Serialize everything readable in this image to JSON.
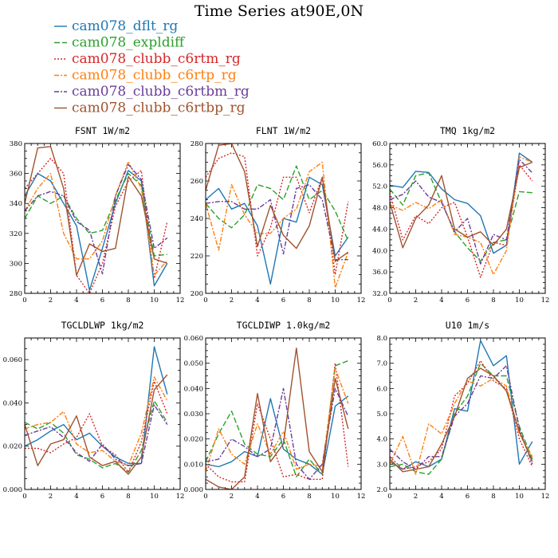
{
  "figure": {
    "title": "Time Series at90E,0N"
  },
  "legend": [
    {
      "label": "cam078_dflt_rg",
      "color": "#1f77b4",
      "dash": ""
    },
    {
      "label": "cam078_expldiff",
      "color": "#2ca02c",
      "dash": "7,3"
    },
    {
      "label": "cam078_clubb_c6rtm_rg",
      "color": "#d62728",
      "dash": "2,2"
    },
    {
      "label": "cam078_clubb_c6rtp_rg",
      "color": "#ff7f0e",
      "dash": "6,2,2,2"
    },
    {
      "label": "cam078_clubb_c6rtbm_rg",
      "color": "#6a3d9a",
      "dash": "6,2,2,2"
    },
    {
      "label": "cam078_clubb_c6rtbp_rg",
      "color": "#a0522d",
      "dash": ""
    }
  ],
  "chart_data": [
    {
      "type": "line",
      "title": "FSNT   1W/m2",
      "xlim": [
        0,
        12
      ],
      "ylim": [
        280,
        380
      ],
      "xticks": [
        0,
        2,
        4,
        6,
        8,
        10,
        12
      ],
      "yticks": [
        "280",
        "300",
        "320",
        "340",
        "360",
        "380"
      ],
      "ytick_values": [
        280,
        300,
        320,
        340,
        360,
        380
      ],
      "x": [
        0,
        1,
        2,
        3,
        4,
        5,
        6,
        7,
        8,
        9,
        10,
        11
      ],
      "series": [
        {
          "values": [
            345,
            360,
            355,
            340,
            325,
            282,
            310,
            340,
            362,
            355,
            285,
            300
          ]
        },
        {
          "values": [
            330,
            345,
            340,
            345,
            330,
            320,
            322,
            342,
            360,
            352,
            305,
            306
          ]
        },
        {
          "values": [
            350,
            360,
            370,
            360,
            292,
            280,
            300,
            338,
            355,
            362,
            290,
            328
          ]
        },
        {
          "values": [
            335,
            350,
            360,
            320,
            303,
            303,
            315,
            345,
            368,
            350,
            292,
            302
          ]
        },
        {
          "values": [
            335,
            345,
            348,
            345,
            328,
            322,
            293,
            345,
            366,
            356,
            310,
            317
          ]
        },
        {
          "values": [
            340,
            377,
            378,
            350,
            292,
            313,
            308,
            310,
            358,
            345,
            303,
            300
          ]
        }
      ]
    },
    {
      "type": "line",
      "title": "FLNT   1W/m2",
      "xlim": [
        0,
        12
      ],
      "ylim": [
        200,
        280
      ],
      "xticks": [
        0,
        2,
        4,
        6,
        8,
        10,
        12
      ],
      "yticks": [
        "200",
        "220",
        "240",
        "260",
        "280"
      ],
      "ytick_values": [
        200,
        220,
        240,
        260,
        280
      ],
      "x": [
        0,
        1,
        2,
        3,
        4,
        5,
        6,
        7,
        8,
        9,
        10,
        11
      ],
      "series": [
        {
          "values": [
            250,
            256,
            245,
            248,
            236,
            205,
            240,
            238,
            262,
            258,
            220,
            230
          ]
        },
        {
          "values": [
            248,
            240,
            235,
            242,
            258,
            256,
            250,
            268,
            250,
            255,
            244,
            228
          ]
        },
        {
          "values": [
            262,
            272,
            275,
            273,
            220,
            235,
            262,
            262,
            243,
            262,
            210,
            249
          ]
        },
        {
          "values": [
            248,
            223,
            258,
            242,
            232,
            232,
            240,
            245,
            265,
            270,
            203,
            222
          ]
        },
        {
          "values": [
            248,
            249,
            249,
            245,
            245,
            250,
            221,
            256,
            258,
            250,
            218,
            218
          ]
        },
        {
          "values": [
            255,
            279,
            280,
            265,
            225,
            247,
            231,
            224,
            236,
            262,
            217,
            222
          ]
        }
      ]
    },
    {
      "type": "line",
      "title": "TMQ   1kg/m2",
      "xlim": [
        0,
        12
      ],
      "ylim": [
        32,
        60
      ],
      "xticks": [
        0,
        2,
        4,
        6,
        8,
        10,
        12
      ],
      "yticks": [
        "32.0",
        "36.0",
        "40.0",
        "44.0",
        "48.0",
        "52.0",
        "56.0",
        "60.0"
      ],
      "ytick_values": [
        32,
        36,
        40,
        44,
        48,
        52,
        56,
        60
      ],
      "x": [
        0,
        1,
        2,
        3,
        4,
        5,
        6,
        7,
        8,
        9,
        10,
        11
      ],
      "series": [
        {
          "values": [
            52.2,
            51.8,
            54.8,
            54.6,
            51.5,
            49.5,
            48.8,
            46.5,
            39.5,
            41.0,
            58.2,
            56.5
          ]
        },
        {
          "values": [
            51.5,
            48.5,
            54.0,
            54.5,
            49.0,
            43.5,
            40.5,
            38.0,
            41.5,
            42.0,
            51.0,
            50.8
          ]
        },
        {
          "values": [
            50.8,
            42.0,
            46.5,
            45.0,
            48.0,
            49.0,
            42.5,
            35.0,
            41.5,
            41.0,
            56.0,
            53.0
          ]
        },
        {
          "values": [
            48.5,
            47.5,
            49.0,
            47.8,
            49.5,
            43.0,
            42.5,
            41.5,
            35.5,
            40.0,
            57.5,
            56.5
          ]
        },
        {
          "values": [
            49.5,
            50.5,
            53.0,
            50.0,
            49.0,
            43.5,
            46.0,
            37.5,
            43.0,
            42.0,
            57.0,
            54.5
          ]
        },
        {
          "values": [
            49.0,
            40.5,
            46.0,
            48.5,
            54.0,
            44.0,
            42.5,
            43.5,
            41.0,
            44.0,
            55.5,
            56.5
          ]
        }
      ]
    },
    {
      "type": "line",
      "title": "TGCLDLWP   1kg/m2",
      "xlim": [
        0,
        12
      ],
      "ylim": [
        0,
        0.07
      ],
      "xticks": [
        0,
        2,
        4,
        6,
        8,
        10,
        12
      ],
      "yticks": [
        "0.000",
        "0.020",
        "0.040",
        "0.060"
      ],
      "ytick_values": [
        0,
        0.02,
        0.04,
        0.06
      ],
      "x": [
        0,
        1,
        2,
        3,
        4,
        5,
        6,
        7,
        8,
        9,
        10,
        11
      ],
      "series": [
        {
          "values": [
            0.02,
            0.023,
            0.027,
            0.03,
            0.023,
            0.026,
            0.02,
            0.015,
            0.012,
            0.012,
            0.066,
            0.044
          ]
        },
        {
          "values": [
            0.031,
            0.028,
            0.031,
            0.026,
            0.016,
            0.014,
            0.01,
            0.012,
            0.008,
            0.018,
            0.041,
            0.031
          ]
        },
        {
          "values": [
            0.019,
            0.019,
            0.017,
            0.021,
            0.024,
            0.035,
            0.02,
            0.016,
            0.008,
            0.022,
            0.05,
            0.035
          ]
        },
        {
          "values": [
            0.028,
            0.03,
            0.031,
            0.036,
            0.021,
            0.017,
            0.018,
            0.013,
            0.011,
            0.026,
            0.052,
            0.041
          ]
        },
        {
          "values": [
            0.025,
            0.027,
            0.029,
            0.024,
            0.017,
            0.013,
            0.021,
            0.014,
            0.011,
            0.012,
            0.039,
            0.03
          ]
        },
        {
          "values": [
            0.03,
            0.011,
            0.021,
            0.023,
            0.034,
            0.015,
            0.011,
            0.013,
            0.007,
            0.015,
            0.046,
            0.053
          ]
        }
      ]
    },
    {
      "type": "line",
      "title": "TGCLDIWP   1.0kg/m2",
      "xlim": [
        0,
        12
      ],
      "ylim": [
        0,
        0.06
      ],
      "xticks": [
        0,
        2,
        4,
        6,
        8,
        10,
        12
      ],
      "yticks": [
        "0.000",
        "0.010",
        "0.020",
        "0.030",
        "0.040",
        "0.050",
        "0.060"
      ],
      "ytick_values": [
        0,
        0.01,
        0.02,
        0.03,
        0.04,
        0.05,
        0.06
      ],
      "x": [
        0,
        1,
        2,
        3,
        4,
        5,
        6,
        7,
        8,
        9,
        10,
        11
      ],
      "series": [
        {
          "values": [
            0.01,
            0.009,
            0.011,
            0.015,
            0.013,
            0.036,
            0.016,
            0.012,
            0.01,
            0.006,
            0.033,
            0.037
          ]
        },
        {
          "values": [
            0.011,
            0.022,
            0.031,
            0.018,
            0.014,
            0.013,
            0.02,
            0.005,
            0.012,
            0.006,
            0.049,
            0.051
          ]
        },
        {
          "values": [
            0.01,
            0.005,
            0.003,
            0.003,
            0.034,
            0.02,
            0.005,
            0.006,
            0.004,
            0.004,
            0.05,
            0.009
          ]
        },
        {
          "values": [
            0.007,
            0.024,
            0.014,
            0.01,
            0.026,
            0.014,
            0.023,
            0.008,
            0.01,
            0.009,
            0.048,
            0.034
          ]
        },
        {
          "values": [
            0.011,
            0.012,
            0.02,
            0.017,
            0.013,
            0.016,
            0.04,
            0.01,
            0.004,
            0.01,
            0.04,
            0.029
          ]
        },
        {
          "values": [
            0.004,
            0.001,
            0.0,
            0.005,
            0.038,
            0.011,
            0.018,
            0.056,
            0.015,
            0.007,
            0.044,
            0.024
          ]
        }
      ]
    },
    {
      "type": "line",
      "title": "U10   1m/s",
      "xlim": [
        0,
        12
      ],
      "ylim": [
        2,
        8
      ],
      "xticks": [
        0,
        2,
        4,
        6,
        8,
        10,
        12
      ],
      "yticks": [
        "2.0",
        "3.0",
        "4.0",
        "5.0",
        "6.0",
        "7.0",
        "8.0"
      ],
      "ytick_values": [
        2,
        3,
        4,
        5,
        6,
        7,
        8
      ],
      "x": [
        0,
        1,
        2,
        3,
        4,
        5,
        6,
        7,
        8,
        9,
        10,
        11
      ],
      "series": [
        {
          "values": [
            3.1,
            2.8,
            3.1,
            2.9,
            3.2,
            5.2,
            5.1,
            7.9,
            6.9,
            7.3,
            3.0,
            3.9
          ]
        },
        {
          "values": [
            2.9,
            3.0,
            2.7,
            2.6,
            3.2,
            5.0,
            5.7,
            7.0,
            6.5,
            6.5,
            4.5,
            3.2
          ]
        },
        {
          "values": [
            3.3,
            2.8,
            2.9,
            3.1,
            3.6,
            5.7,
            6.2,
            7.1,
            6.3,
            6.0,
            4.0,
            2.9
          ]
        },
        {
          "values": [
            3.0,
            4.1,
            2.6,
            4.6,
            4.2,
            5.4,
            6.3,
            6.1,
            6.4,
            6.1,
            4.2,
            3.3
          ]
        },
        {
          "values": [
            3.6,
            3.1,
            2.8,
            3.3,
            3.3,
            4.9,
            5.4,
            6.5,
            6.4,
            6.9,
            4.4,
            3.0
          ]
        },
        {
          "values": [
            3.2,
            2.7,
            2.8,
            2.9,
            3.8,
            4.9,
            6.4,
            6.8,
            6.5,
            5.9,
            4.3,
            3.1
          ]
        }
      ]
    }
  ]
}
